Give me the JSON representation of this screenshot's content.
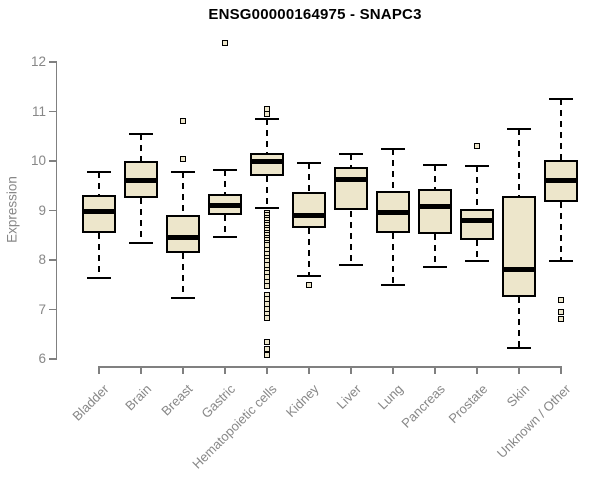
{
  "chart_data": {
    "type": "boxplot",
    "title": "ENSG00000164975 - SNAPC3",
    "ylabel": "Expression",
    "xlabel": "",
    "ylim": [
      6,
      12
    ],
    "yticks": [
      6,
      7,
      8,
      9,
      10,
      11,
      12
    ],
    "grid": "off",
    "legend": "none",
    "categories": [
      "Bladder",
      "Brain",
      "Breast",
      "Gastric",
      "Hematopoietic cells",
      "Kidney",
      "Liver",
      "Lung",
      "Pancreas",
      "Prostate",
      "Skin",
      "Unknown / Other"
    ],
    "series": [
      {
        "name": "Bladder",
        "whisker_low": 7.63,
        "q1": 8.55,
        "median": 8.98,
        "q3": 9.31,
        "whisker_high": 9.78,
        "outliers": []
      },
      {
        "name": "Brain",
        "whisker_low": 8.35,
        "q1": 9.25,
        "median": 9.6,
        "q3": 10.0,
        "whisker_high": 10.55,
        "outliers": []
      },
      {
        "name": "Breast",
        "whisker_low": 7.24,
        "q1": 8.14,
        "median": 8.45,
        "q3": 8.91,
        "whisker_high": 9.78,
        "outliers": [
          10.8,
          10.05
        ]
      },
      {
        "name": "Gastric",
        "whisker_low": 8.47,
        "q1": 8.91,
        "median": 9.11,
        "q3": 9.33,
        "whisker_high": 9.82,
        "outliers": [
          12.39
        ]
      },
      {
        "name": "Hematopoietic cells",
        "whisker_low": 9.05,
        "q1": 9.7,
        "median": 9.98,
        "q3": 10.17,
        "whisker_high": 10.85,
        "outliers": [
          11.05,
          10.95,
          8.95,
          8.9,
          8.85,
          8.8,
          8.75,
          8.7,
          8.65,
          8.6,
          8.55,
          8.5,
          8.45,
          8.4,
          8.35,
          8.3,
          8.2,
          8.12,
          8.05,
          7.97,
          7.9,
          7.8,
          7.73,
          7.65,
          7.55,
          7.48,
          7.3,
          7.22,
          7.12,
          7.02,
          6.9,
          6.82,
          6.35,
          6.2,
          6.08
        ]
      },
      {
        "name": "Kidney",
        "whisker_low": 7.68,
        "q1": 8.65,
        "median": 8.9,
        "q3": 9.38,
        "whisker_high": 9.95,
        "outliers": [
          7.5
        ]
      },
      {
        "name": "Liver",
        "whisker_low": 7.9,
        "q1": 9.0,
        "median": 9.62,
        "q3": 9.87,
        "whisker_high": 10.15,
        "outliers": []
      },
      {
        "name": "Lung",
        "whisker_low": 7.5,
        "q1": 8.55,
        "median": 8.95,
        "q3": 9.4,
        "whisker_high": 10.25,
        "outliers": []
      },
      {
        "name": "Pancreas",
        "whisker_low": 7.85,
        "q1": 8.52,
        "median": 9.09,
        "q3": 9.43,
        "whisker_high": 9.92,
        "outliers": []
      },
      {
        "name": "Prostate",
        "whisker_low": 7.97,
        "q1": 8.4,
        "median": 8.8,
        "q3": 9.04,
        "whisker_high": 9.9,
        "outliers": [
          10.3
        ]
      },
      {
        "name": "Skin",
        "whisker_low": 6.22,
        "q1": 7.26,
        "median": 7.8,
        "q3": 9.29,
        "whisker_high": 10.65,
        "outliers": []
      },
      {
        "name": "Unknown / Other",
        "whisker_low": 7.97,
        "q1": 9.17,
        "median": 9.6,
        "q3": 10.02,
        "whisker_high": 11.25,
        "outliers": [
          7.2,
          6.95,
          6.8
        ]
      }
    ]
  },
  "colors": {
    "background": "#FFFFFF",
    "box_fill": "#EDE6CB",
    "box_stroke": "#000000",
    "median": "#000000",
    "whisker": "#000000",
    "axis": "#808080",
    "tick_label": "#878787",
    "title": "#000000"
  }
}
